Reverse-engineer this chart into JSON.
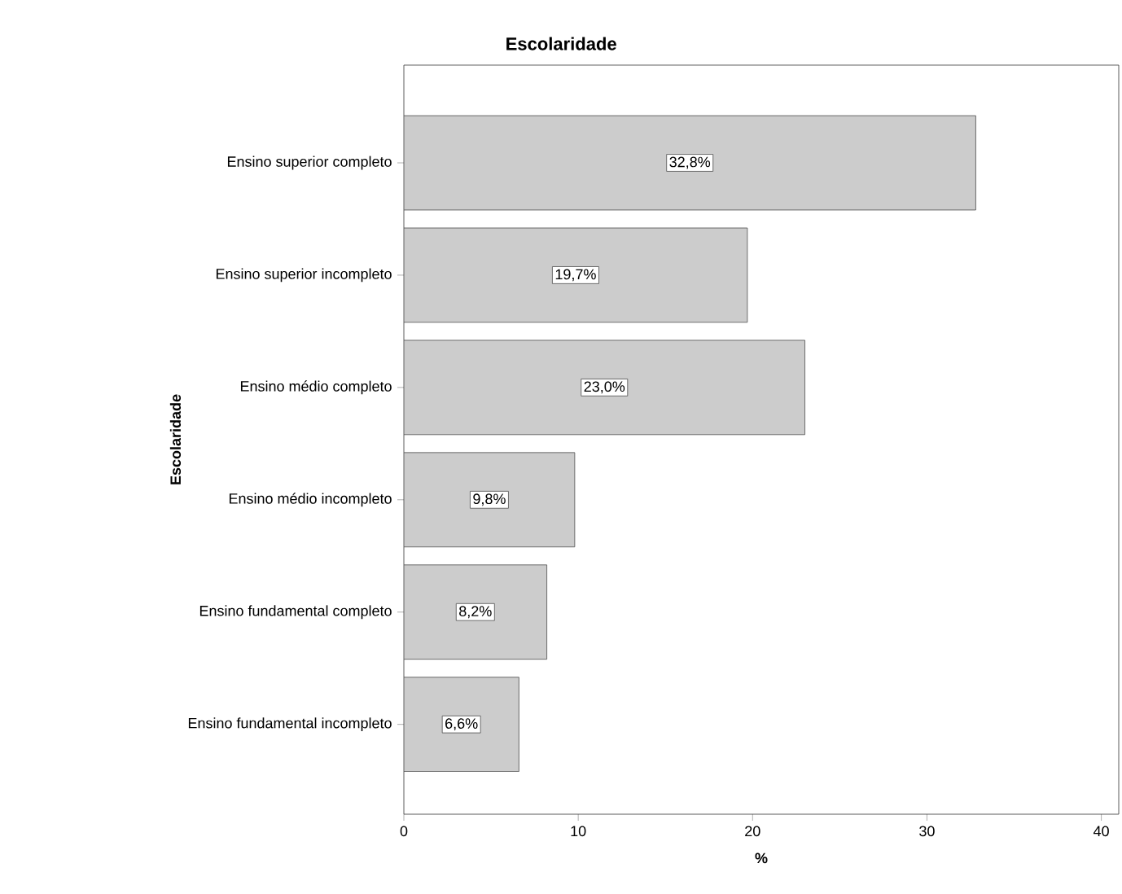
{
  "chart_data": {
    "type": "bar",
    "orientation": "horizontal",
    "title": "Escolaridade",
    "xlabel": "%",
    "ylabel": "Escolaridade",
    "categories": [
      "Ensino superior completo",
      "Ensino superior incompleto",
      "Ensino médio completo",
      "Ensino médio incompleto",
      "Ensino fundamental completo",
      "Ensino fundamental incompleto"
    ],
    "values": [
      32.8,
      19.7,
      23.0,
      9.8,
      8.2,
      6.6
    ],
    "value_labels": [
      "32,8%",
      "19,7%",
      "23,0%",
      "9,8%",
      "8,2%",
      "6,6%"
    ],
    "color": "#cccccc",
    "xlim": [
      0,
      41
    ],
    "xticks": [
      0,
      10,
      20,
      30,
      40
    ]
  }
}
